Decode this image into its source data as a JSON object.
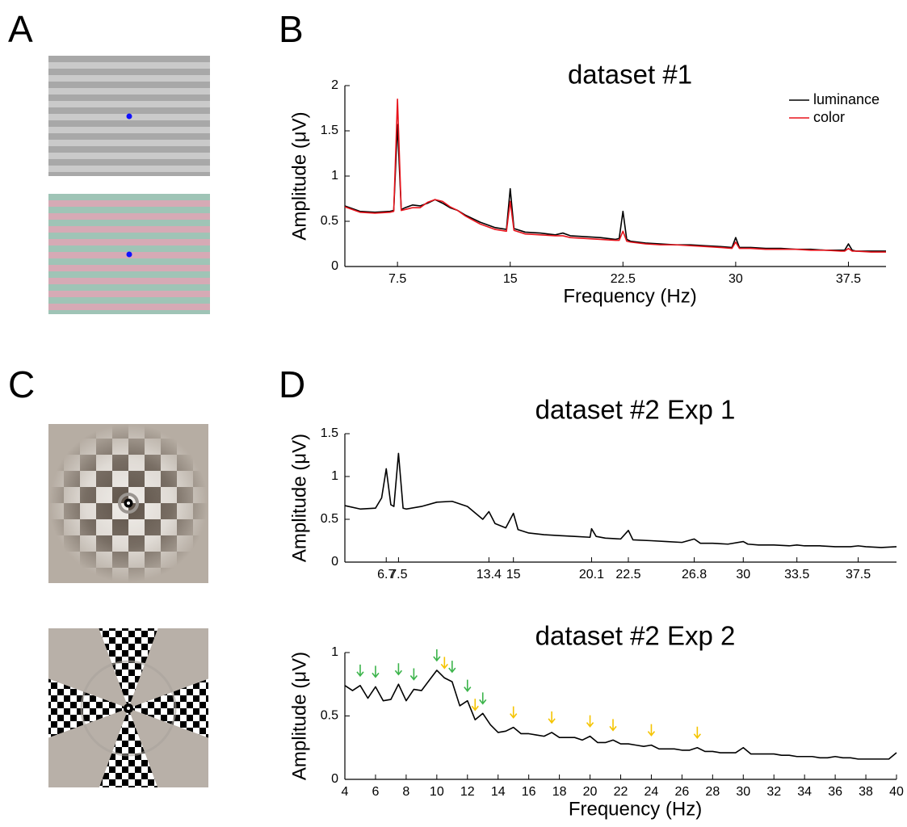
{
  "panel_labels": [
    "A",
    "B",
    "C",
    "D"
  ],
  "chart_data": [
    {
      "type": "line",
      "title": "dataset #1",
      "xlabel": "Frequency (Hz)",
      "ylabel": "Amplitude (μV)",
      "xlim": [
        4,
        40
      ],
      "ylim": [
        0,
        2
      ],
      "xticks": [
        7.5,
        15,
        22.5,
        30,
        37.5
      ],
      "yticks": [
        0,
        0.5,
        1,
        1.5,
        2
      ],
      "legend": "upper right",
      "x": [
        4,
        5,
        6,
        7,
        7.25,
        7.5,
        7.75,
        8,
        8.5,
        9,
        9.5,
        10,
        10.5,
        11,
        11.5,
        12,
        13,
        14,
        14.75,
        15,
        15.25,
        16,
        17,
        18,
        18.5,
        19,
        20,
        21,
        22,
        22.25,
        22.5,
        22.75,
        23,
        24,
        25,
        26,
        27,
        28,
        29,
        29.75,
        30,
        30.25,
        31,
        32,
        33,
        34,
        35,
        36,
        37,
        37.25,
        37.5,
        37.75,
        38,
        39,
        40
      ],
      "series": [
        {
          "name": "luminance",
          "color": "#000000",
          "values": [
            0.67,
            0.61,
            0.6,
            0.61,
            0.62,
            1.57,
            0.63,
            0.65,
            0.68,
            0.67,
            0.7,
            0.74,
            0.7,
            0.65,
            0.62,
            0.57,
            0.49,
            0.43,
            0.41,
            0.86,
            0.42,
            0.38,
            0.37,
            0.35,
            0.37,
            0.34,
            0.33,
            0.32,
            0.3,
            0.31,
            0.61,
            0.3,
            0.28,
            0.26,
            0.25,
            0.24,
            0.24,
            0.23,
            0.22,
            0.21,
            0.32,
            0.21,
            0.21,
            0.2,
            0.2,
            0.19,
            0.19,
            0.18,
            0.18,
            0.18,
            0.25,
            0.18,
            0.17,
            0.17,
            0.17
          ]
        },
        {
          "name": "color",
          "color": "#e8141c",
          "values": [
            0.66,
            0.6,
            0.59,
            0.6,
            0.61,
            1.85,
            0.62,
            0.63,
            0.65,
            0.65,
            0.71,
            0.74,
            0.72,
            0.66,
            0.62,
            0.56,
            0.47,
            0.41,
            0.39,
            0.72,
            0.4,
            0.36,
            0.35,
            0.34,
            0.34,
            0.32,
            0.31,
            0.3,
            0.29,
            0.29,
            0.39,
            0.28,
            0.27,
            0.25,
            0.24,
            0.24,
            0.23,
            0.22,
            0.21,
            0.2,
            0.27,
            0.2,
            0.2,
            0.19,
            0.19,
            0.19,
            0.18,
            0.18,
            0.17,
            0.17,
            0.2,
            0.17,
            0.17,
            0.16,
            0.16
          ]
        }
      ]
    },
    {
      "type": "line",
      "title": "dataset #2  Exp 1",
      "ylabel": "Amplitude (μV)",
      "xlim": [
        4,
        40
      ],
      "ylim": [
        0,
        1.5
      ],
      "xticks": [
        6.7,
        7.5,
        13.4,
        15,
        20.1,
        22.5,
        26.8,
        30,
        33.5,
        37.5
      ],
      "yticks": [
        0,
        0.5,
        1,
        1.5
      ],
      "x": [
        4,
        5,
        6,
        6.4,
        6.7,
        7,
        7.2,
        7.5,
        7.8,
        8,
        9,
        10,
        11,
        12,
        13,
        13.4,
        13.8,
        14.5,
        15,
        15.3,
        16,
        17,
        18,
        19,
        20,
        20.1,
        20.4,
        21,
        22,
        22.5,
        22.8,
        24,
        25,
        26,
        26.8,
        27.2,
        28,
        29,
        30,
        30.3,
        31,
        32,
        33,
        33.5,
        34,
        35,
        36,
        37,
        37.5,
        38,
        39,
        40
      ],
      "series": [
        {
          "color": "#000000",
          "values": [
            0.66,
            0.62,
            0.63,
            0.75,
            1.09,
            0.67,
            0.65,
            1.27,
            0.63,
            0.62,
            0.65,
            0.7,
            0.71,
            0.65,
            0.5,
            0.59,
            0.45,
            0.4,
            0.57,
            0.38,
            0.34,
            0.32,
            0.31,
            0.3,
            0.29,
            0.39,
            0.3,
            0.28,
            0.27,
            0.37,
            0.26,
            0.25,
            0.24,
            0.23,
            0.27,
            0.22,
            0.22,
            0.21,
            0.24,
            0.21,
            0.2,
            0.2,
            0.19,
            0.2,
            0.19,
            0.19,
            0.18,
            0.18,
            0.19,
            0.18,
            0.17,
            0.18
          ]
        }
      ]
    },
    {
      "type": "line",
      "title": "dataset #2  Exp 2",
      "xlabel": "Frequency (Hz)",
      "ylabel": "Amplitude (μV)",
      "xlim": [
        4,
        40
      ],
      "ylim": [
        0,
        1
      ],
      "xticks": [
        4,
        6,
        8,
        10,
        12,
        14,
        16,
        18,
        20,
        22,
        24,
        26,
        28,
        30,
        32,
        34,
        36,
        38,
        40
      ],
      "yticks": [
        0,
        0.5,
        1
      ],
      "x": [
        4,
        4.5,
        5,
        5.5,
        6,
        6.5,
        7,
        7.5,
        8,
        8.5,
        9,
        9.5,
        10,
        10.5,
        11,
        11.5,
        12,
        12.5,
        13,
        13.5,
        14,
        14.5,
        15,
        15.5,
        16,
        16.5,
        17,
        17.5,
        18,
        18.5,
        19,
        19.5,
        20,
        20.5,
        21,
        21.5,
        22,
        22.5,
        23,
        23.5,
        24,
        24.5,
        25,
        25.5,
        26,
        26.5,
        27,
        27.5,
        28,
        28.5,
        29,
        29.5,
        30,
        30.5,
        31,
        31.5,
        32,
        32.5,
        33,
        33.5,
        34,
        34.5,
        35,
        35.5,
        36,
        36.5,
        37,
        37.5,
        38,
        38.5,
        39,
        39.5,
        40
      ],
      "series": [
        {
          "color": "#000000",
          "values": [
            0.74,
            0.7,
            0.74,
            0.64,
            0.73,
            0.62,
            0.63,
            0.75,
            0.62,
            0.71,
            0.7,
            0.78,
            0.86,
            0.8,
            0.77,
            0.58,
            0.62,
            0.47,
            0.52,
            0.43,
            0.37,
            0.38,
            0.41,
            0.36,
            0.36,
            0.35,
            0.34,
            0.37,
            0.33,
            0.33,
            0.33,
            0.31,
            0.34,
            0.29,
            0.29,
            0.31,
            0.28,
            0.28,
            0.27,
            0.26,
            0.27,
            0.24,
            0.24,
            0.24,
            0.23,
            0.23,
            0.25,
            0.22,
            0.22,
            0.21,
            0.21,
            0.21,
            0.25,
            0.2,
            0.2,
            0.2,
            0.2,
            0.19,
            0.19,
            0.18,
            0.18,
            0.18,
            0.17,
            0.17,
            0.18,
            0.17,
            0.17,
            0.16,
            0.16,
            0.16,
            0.16,
            0.16,
            0.21
          ]
        }
      ],
      "arrows": [
        {
          "color": "#3cb44b",
          "x": [
            5,
            6,
            7.5,
            8.5,
            10,
            11,
            12,
            13
          ]
        },
        {
          "color": "#f5c400",
          "x": [
            10.5,
            12.5,
            15,
            17.5,
            20,
            21.5,
            24,
            27
          ]
        }
      ]
    }
  ]
}
